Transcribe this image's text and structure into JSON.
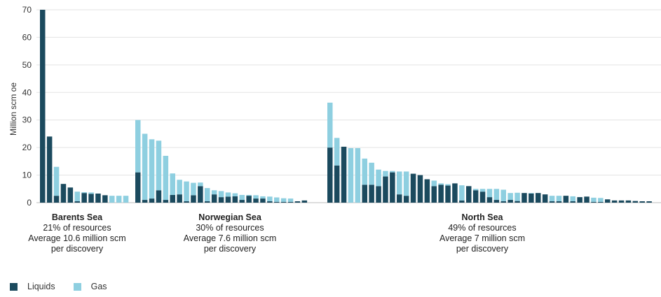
{
  "chart_data": {
    "type": "bar",
    "stacked": true,
    "ylabel": "Million scm oe",
    "ylim": [
      0,
      70
    ],
    "yticks": [
      0,
      10,
      20,
      30,
      40,
      50,
      60,
      70
    ],
    "grid": true,
    "legend_position": "bottom-left",
    "colors": {
      "liquids": "#1b4a5e",
      "gas": "#8ecfe0"
    },
    "series": [
      {
        "name": "Liquids",
        "key": "liquids"
      },
      {
        "name": "Gas",
        "key": "gas"
      }
    ],
    "groups": [
      {
        "name": "Barents Sea",
        "lines": [
          "21% of resources",
          "Average 10.6 million scm",
          "per discovery"
        ],
        "bars": [
          [
            70,
            0
          ],
          [
            24,
            0
          ],
          [
            2.5,
            10.5
          ],
          [
            6.8,
            0
          ],
          [
            5.5,
            0
          ],
          [
            0.5,
            3.5
          ],
          [
            3.5,
            0.3
          ],
          [
            3.2,
            0.5
          ],
          [
            3.3,
            0
          ],
          [
            2.7,
            0
          ],
          [
            0,
            2.5
          ],
          [
            0,
            2.5
          ],
          [
            0,
            2.5
          ]
        ]
      },
      {
        "name": "Norwegian Sea",
        "lines": [
          "30% of resources",
          "Average 7.6 million scm",
          "per discovery"
        ],
        "bars": [
          [
            11,
            19
          ],
          [
            1,
            24
          ],
          [
            1.5,
            21.5
          ],
          [
            4.5,
            18
          ],
          [
            1,
            16
          ],
          [
            2.8,
            7.8
          ],
          [
            3,
            5.3
          ],
          [
            0.5,
            7.2
          ],
          [
            2.7,
            4.5
          ],
          [
            6,
            1.3
          ],
          [
            0.5,
            4.8
          ],
          [
            3,
            1.5
          ],
          [
            2,
            2.2
          ],
          [
            2.2,
            1.5
          ],
          [
            2.3,
            1.1
          ],
          [
            1,
            1.8
          ],
          [
            2.5,
            0.3
          ],
          [
            1.5,
            1.2
          ],
          [
            1.5,
            0.8
          ],
          [
            0.5,
            1.7
          ],
          [
            0.3,
            1.6
          ],
          [
            0.3,
            1.3
          ],
          [
            0.3,
            1.2
          ],
          [
            0.5,
            0
          ],
          [
            0.8,
            0
          ]
        ]
      },
      {
        "name": "North Sea",
        "lines": [
          "49% of resources",
          "Average 7 million scm",
          "per discovery"
        ],
        "bars": [
          [
            20,
            16.3
          ],
          [
            13.5,
            10
          ],
          [
            20.3,
            0
          ],
          [
            0,
            19.8
          ],
          [
            0,
            19.8
          ],
          [
            6.5,
            9.5
          ],
          [
            6.5,
            8
          ],
          [
            6,
            6
          ],
          [
            9.5,
            2
          ],
          [
            11,
            0.5
          ],
          [
            3,
            8.3
          ],
          [
            2.5,
            8.8
          ],
          [
            10.5,
            0
          ],
          [
            10,
            0
          ],
          [
            8.5,
            0
          ],
          [
            6,
            2
          ],
          [
            6.5,
            0.5
          ],
          [
            6.2,
            0.5
          ],
          [
            7,
            0
          ],
          [
            0.8,
            5.5
          ],
          [
            6,
            0
          ],
          [
            4.5,
            0.5
          ],
          [
            4,
            1
          ],
          [
            2,
            3
          ],
          [
            1,
            4
          ],
          [
            0.5,
            4.2
          ],
          [
            1,
            2.5
          ],
          [
            0.6,
            3
          ],
          [
            3.5,
            0
          ],
          [
            3.3,
            0.2
          ],
          [
            3.5,
            0
          ],
          [
            3,
            0
          ],
          [
            0.5,
            2
          ],
          [
            0.5,
            2
          ],
          [
            2.5,
            0
          ],
          [
            0.5,
            1.8
          ],
          [
            2,
            0
          ],
          [
            2.2,
            0
          ],
          [
            0.3,
            1.5
          ],
          [
            0.3,
            1.4
          ],
          [
            1.2,
            0
          ],
          [
            0.8,
            0
          ],
          [
            0.8,
            0
          ],
          [
            0.8,
            0
          ],
          [
            0.6,
            0
          ],
          [
            0.5,
            0
          ],
          [
            0.5,
            0
          ]
        ]
      }
    ]
  }
}
